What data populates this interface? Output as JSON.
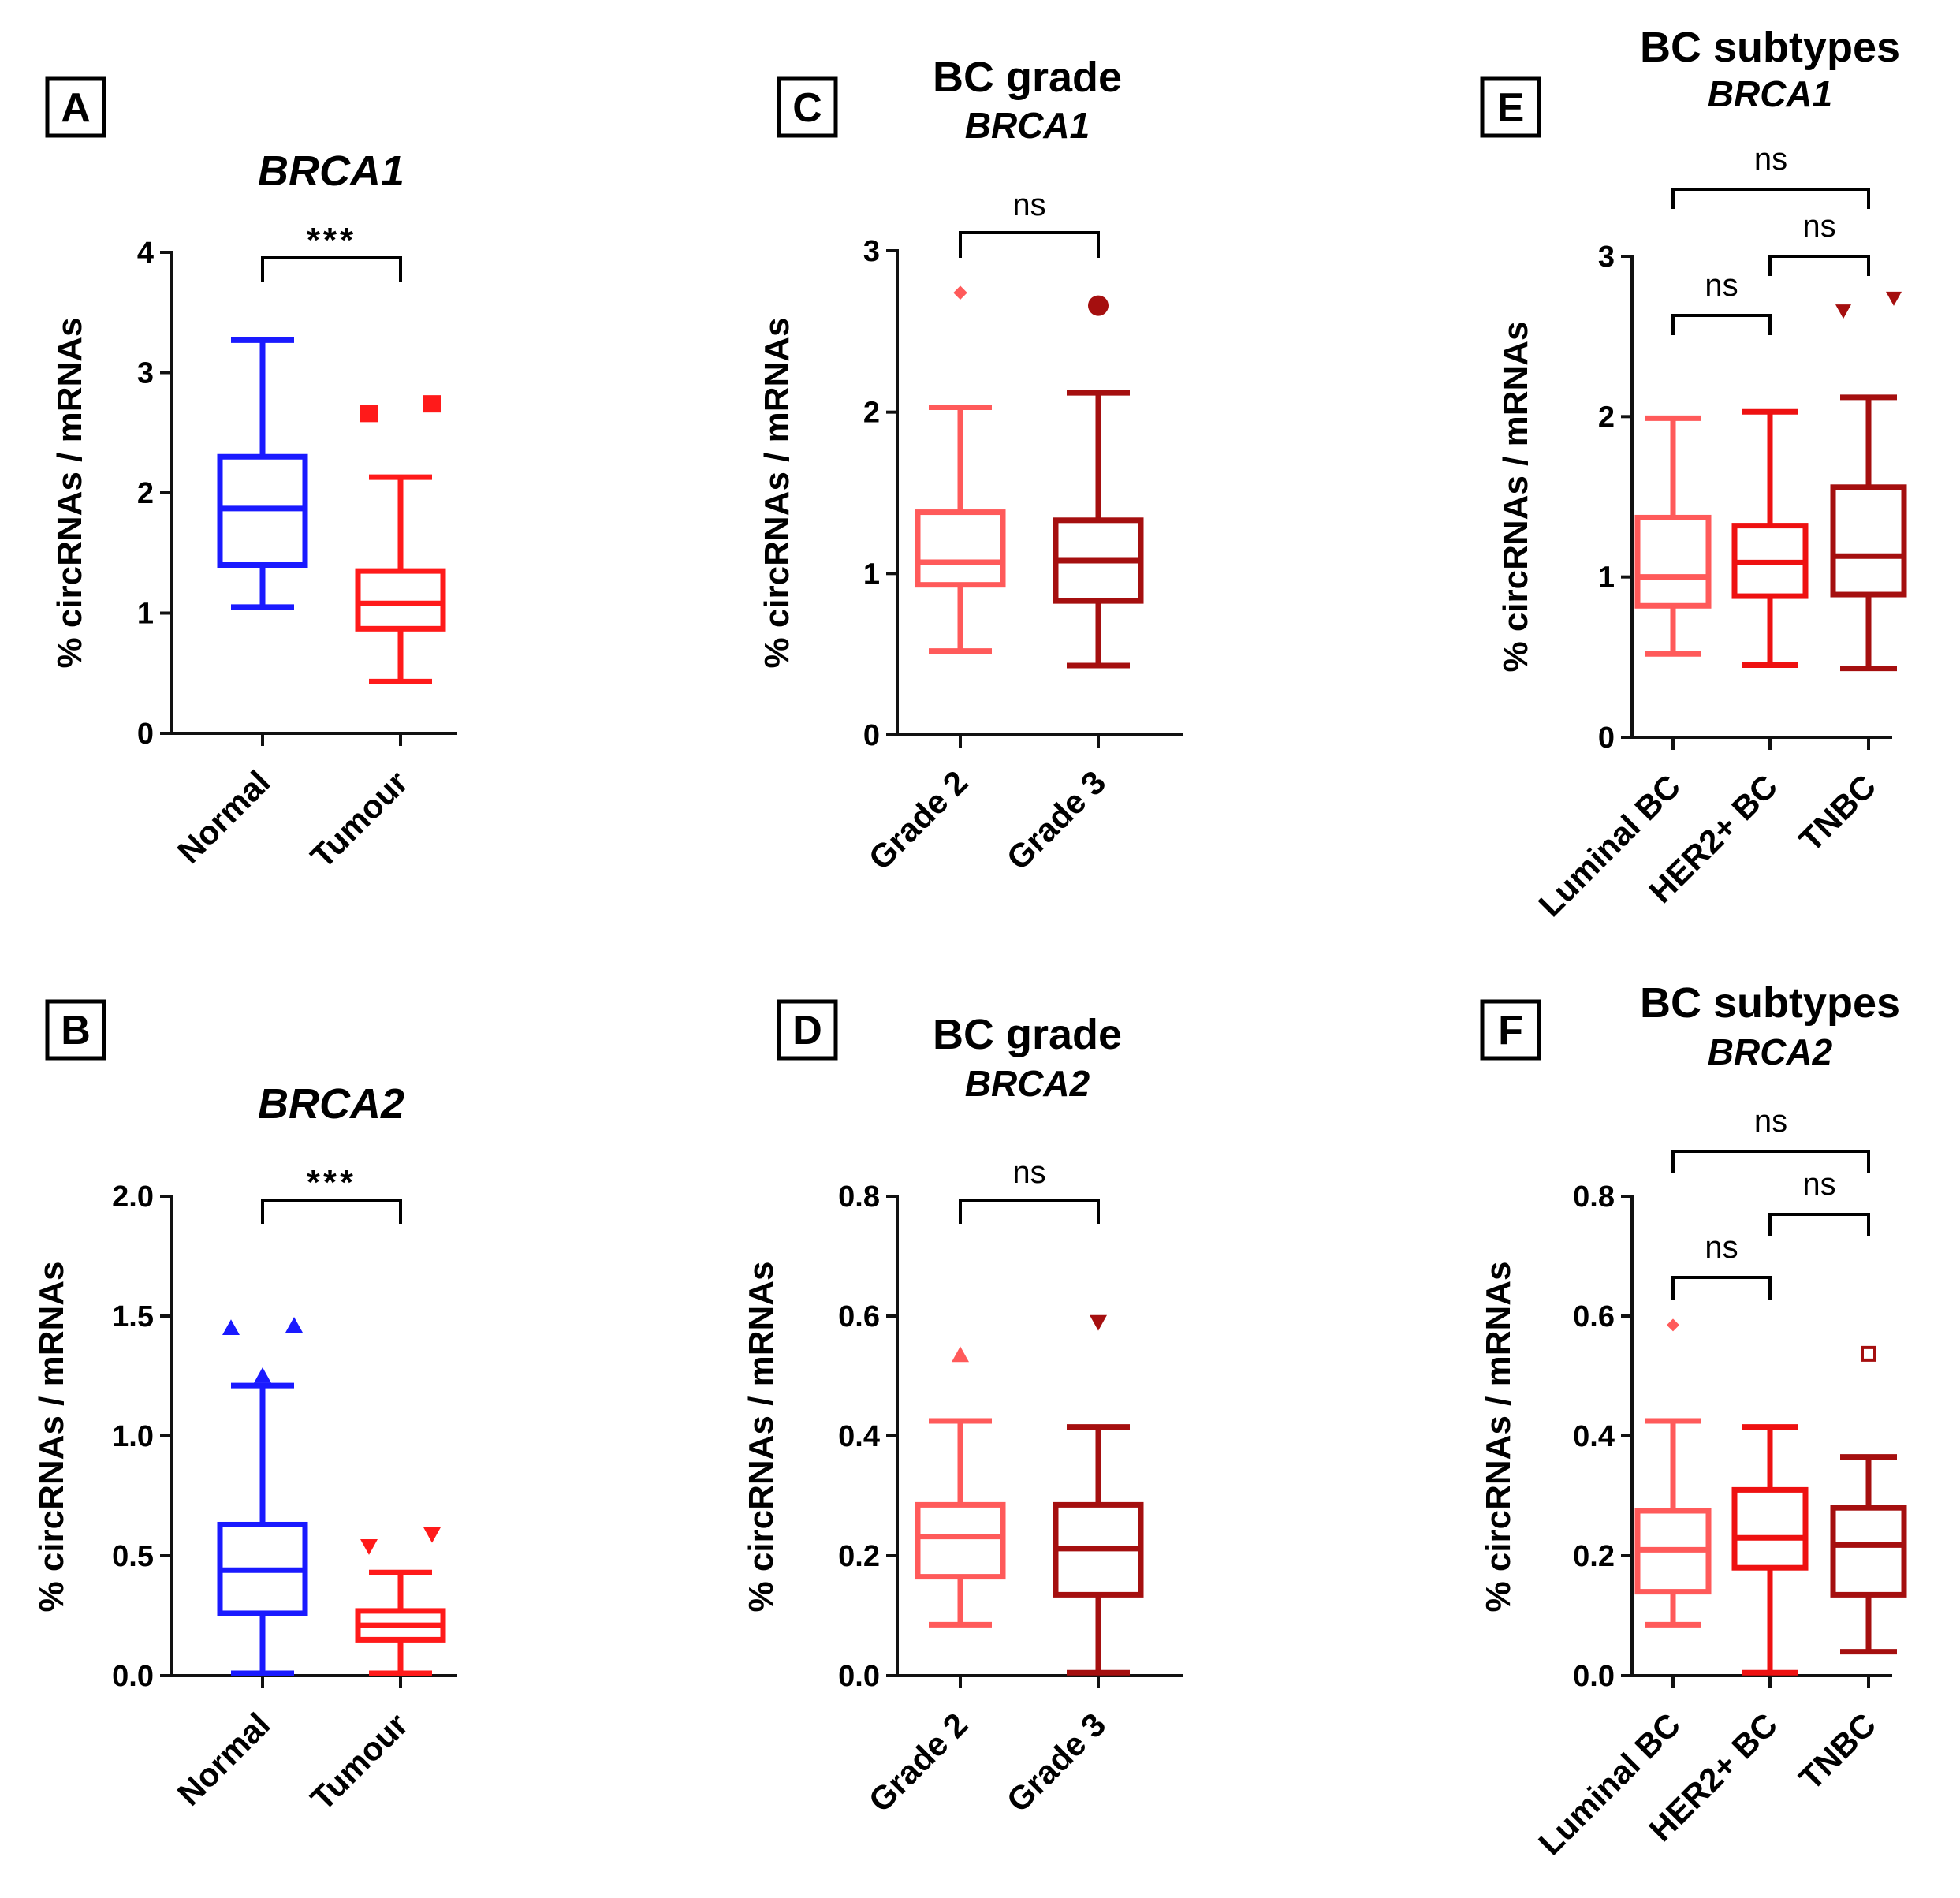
{
  "colors": {
    "normal": "#1a1aff",
    "tumour": "#ff1a1a",
    "grade2": "#ff5a5a",
    "grade3": "#a50f0f",
    "luminal": "#ff5a5a",
    "her2": "#ee1111",
    "tnbc": "#a50f0f",
    "axis": "#111111"
  },
  "chart_data": [
    {
      "panel": "A",
      "type": "box",
      "title": "BRCA1",
      "subtitle": "",
      "ylabel": "% circRNAs / mRNAs",
      "ylim": [
        0,
        4
      ],
      "yticks": [
        0,
        1,
        2,
        3,
        4
      ],
      "ytick_labels": [
        "0",
        "1",
        "2",
        "3",
        "4"
      ],
      "categories": [
        "Normal",
        "Tumour"
      ],
      "boxes": [
        {
          "name": "Normal",
          "color": "normal",
          "min": 1.05,
          "q1": 1.4,
          "median": 1.87,
          "q3": 2.3,
          "max": 3.27,
          "outliers": [],
          "marker": "square"
        },
        {
          "name": "Tumour",
          "color": "tumour",
          "min": 0.43,
          "q1": 0.87,
          "median": 1.08,
          "q3": 1.35,
          "max": 2.13,
          "outliers": [
            {
              "offset": -1,
              "value": 2.66
            },
            {
              "offset": 1,
              "value": 2.74
            }
          ],
          "marker": "square"
        }
      ],
      "significance": [
        {
          "from": 0,
          "to": 1,
          "label": "***",
          "level": 1
        }
      ]
    },
    {
      "panel": "B",
      "type": "box",
      "title": "BRCA2",
      "subtitle": "",
      "ylabel": "% circRNAs / mRNAs",
      "ylim": [
        0,
        2
      ],
      "yticks": [
        0,
        0.5,
        1,
        1.5,
        2
      ],
      "ytick_labels": [
        "0.0",
        "0.5",
        "1.0",
        "1.5",
        "2.0"
      ],
      "categories": [
        "Normal",
        "Tumour"
      ],
      "boxes": [
        {
          "name": "Normal",
          "color": "normal",
          "min": 0.01,
          "q1": 0.26,
          "median": 0.44,
          "q3": 0.63,
          "max": 1.21,
          "outliers": [
            {
              "offset": 0,
              "value": 1.25
            },
            {
              "offset": -1,
              "value": 1.45
            },
            {
              "offset": 1,
              "value": 1.46
            }
          ],
          "marker": "triangle-up"
        },
        {
          "name": "Tumour",
          "color": "tumour",
          "min": 0.01,
          "q1": 0.15,
          "median": 0.21,
          "q3": 0.27,
          "max": 0.43,
          "outliers": [
            {
              "offset": -1,
              "value": 0.54
            },
            {
              "offset": 1,
              "value": 0.59
            }
          ],
          "marker": "triangle-down"
        }
      ],
      "significance": [
        {
          "from": 0,
          "to": 1,
          "label": "***",
          "level": 1
        }
      ]
    },
    {
      "panel": "C",
      "type": "box",
      "title": "BC grade",
      "subtitle": "BRCA1",
      "ylabel": "% circRNAs / mRNAs",
      "ylim": [
        0,
        3
      ],
      "yticks": [
        0,
        1,
        2,
        3
      ],
      "ytick_labels": [
        "0",
        "1",
        "2",
        "3"
      ],
      "categories": [
        "Grade 2",
        "Grade 3"
      ],
      "boxes": [
        {
          "name": "Grade 2",
          "color": "grade2",
          "min": 0.52,
          "q1": 0.93,
          "median": 1.07,
          "q3": 1.38,
          "max": 2.03,
          "outliers": [
            {
              "offset": 0,
              "value": 2.74
            }
          ],
          "marker": "diamond"
        },
        {
          "name": "Grade 3",
          "color": "grade3",
          "min": 0.43,
          "q1": 0.83,
          "median": 1.08,
          "q3": 1.33,
          "max": 2.12,
          "outliers": [
            {
              "offset": 0,
              "value": 2.66
            }
          ],
          "marker": "circle"
        }
      ],
      "significance": [
        {
          "from": 0,
          "to": 1,
          "label": "ns",
          "level": 1
        }
      ]
    },
    {
      "panel": "D",
      "type": "box",
      "title": "BC grade",
      "subtitle": "BRCA2",
      "ylabel": "% circRNAs / mRNAs",
      "ylim": [
        0,
        0.8
      ],
      "yticks": [
        0,
        0.2,
        0.4,
        0.6,
        0.8
      ],
      "ytick_labels": [
        "0.0",
        "0.2",
        "0.4",
        "0.6",
        "0.8"
      ],
      "categories": [
        "Grade 2",
        "Grade 3"
      ],
      "boxes": [
        {
          "name": "Grade 2",
          "color": "grade2",
          "min": 0.085,
          "q1": 0.165,
          "median": 0.232,
          "q3": 0.285,
          "max": 0.425,
          "outliers": [
            {
              "offset": 0,
              "value": 0.535
            }
          ],
          "marker": "triangle-up"
        },
        {
          "name": "Grade 3",
          "color": "grade3",
          "min": 0.005,
          "q1": 0.135,
          "median": 0.212,
          "q3": 0.285,
          "max": 0.415,
          "outliers": [
            {
              "offset": 0,
              "value": 0.59
            }
          ],
          "marker": "triangle-down"
        }
      ],
      "significance": [
        {
          "from": 0,
          "to": 1,
          "label": "ns",
          "level": 1
        }
      ]
    },
    {
      "panel": "E",
      "type": "box",
      "title": "BC subtypes",
      "subtitle": "BRCA1",
      "ylabel": "% circRNAs / mRNAs",
      "ylim": [
        0,
        3
      ],
      "yticks": [
        0,
        1,
        2,
        3
      ],
      "ytick_labels": [
        "0",
        "1",
        "2",
        "3"
      ],
      "categories": [
        "Luminal BC",
        "HER2+ BC",
        "TNBC"
      ],
      "boxes": [
        {
          "name": "Luminal BC",
          "color": "luminal",
          "min": 0.52,
          "q1": 0.82,
          "median": 1.0,
          "q3": 1.37,
          "max": 1.99,
          "outliers": [],
          "marker": "diamond"
        },
        {
          "name": "HER2+ BC",
          "color": "her2",
          "min": 0.45,
          "q1": 0.88,
          "median": 1.09,
          "q3": 1.32,
          "max": 2.03,
          "outliers": [],
          "marker": "square"
        },
        {
          "name": "TNBC",
          "color": "tnbc",
          "min": 0.43,
          "q1": 0.89,
          "median": 1.13,
          "q3": 1.56,
          "max": 2.12,
          "outliers": [
            {
              "offset": -1,
              "value": 2.66
            },
            {
              "offset": 1,
              "value": 2.74
            }
          ],
          "marker": "triangle-down"
        }
      ],
      "significance": [
        {
          "from": 0,
          "to": 1,
          "label": "ns",
          "level": 1
        },
        {
          "from": 1,
          "to": 2,
          "label": "ns",
          "level": 2
        },
        {
          "from": 0,
          "to": 2,
          "label": "ns",
          "level": 3
        }
      ]
    },
    {
      "panel": "F",
      "type": "box",
      "title": "BC subtypes",
      "subtitle": "BRCA2",
      "ylabel": "% circRNAs / mRNAs",
      "ylim": [
        0,
        0.8
      ],
      "yticks": [
        0,
        0.2,
        0.4,
        0.6,
        0.8
      ],
      "ytick_labels": [
        "0.0",
        "0.2",
        "0.4",
        "0.6",
        "0.8"
      ],
      "categories": [
        "Luminal BC",
        "HER2+ BC",
        "TNBC"
      ],
      "boxes": [
        {
          "name": "Luminal BC",
          "color": "luminal",
          "min": 0.085,
          "q1": 0.14,
          "median": 0.21,
          "q3": 0.275,
          "max": 0.425,
          "outliers": [
            {
              "offset": 0,
              "value": 0.585
            }
          ],
          "marker": "diamond"
        },
        {
          "name": "HER2+ BC",
          "color": "her2",
          "min": 0.005,
          "q1": 0.18,
          "median": 0.23,
          "q3": 0.31,
          "max": 0.415,
          "outliers": [],
          "marker": "square"
        },
        {
          "name": "TNBC",
          "color": "tnbc",
          "min": 0.04,
          "q1": 0.135,
          "median": 0.218,
          "q3": 0.28,
          "max": 0.365,
          "outliers": [
            {
              "offset": 0,
              "value": 0.537
            }
          ],
          "marker": "open-square"
        }
      ],
      "significance": [
        {
          "from": 0,
          "to": 1,
          "label": "ns",
          "level": 1
        },
        {
          "from": 1,
          "to": 2,
          "label": "ns",
          "level": 2
        },
        {
          "from": 0,
          "to": 2,
          "label": "ns",
          "level": 3
        }
      ]
    }
  ]
}
